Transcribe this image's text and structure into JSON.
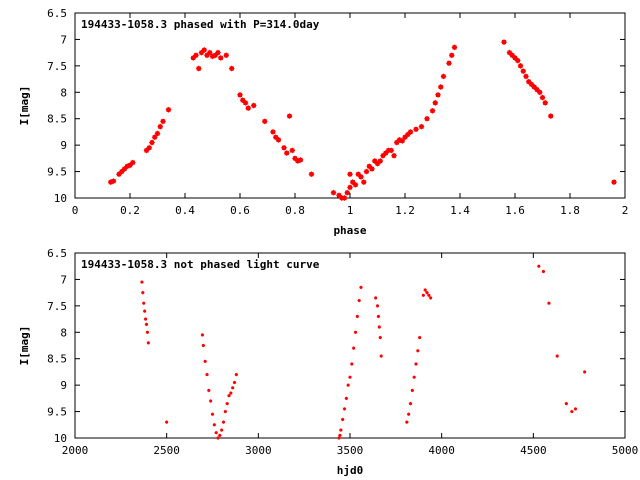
{
  "chart_data": [
    {
      "type": "scatter",
      "title": "194433-1058.3 phased with P=314.0day",
      "xlabel": "phase",
      "ylabel": "I[mag]",
      "xlim": [
        0,
        2
      ],
      "ylim": [
        10,
        6.5
      ],
      "y_inverted": true,
      "grid": false,
      "marker_color": "#ff0000",
      "x_ticks": [
        0,
        0.2,
        0.4,
        0.6,
        0.8,
        1,
        1.2,
        1.4,
        1.6,
        1.8,
        2
      ],
      "x_tick_labels": [
        "0",
        "0.2",
        "0.4",
        "0.6",
        "0.8",
        "1",
        "1.2",
        "1.4",
        "1.6",
        "1.8",
        "2"
      ],
      "y_ticks": [
        6.5,
        7,
        7.5,
        8,
        8.5,
        9,
        9.5,
        10
      ],
      "y_tick_labels": [
        "6.5",
        "7",
        "7.5",
        "8",
        "8.5",
        "9",
        "9.5",
        "10"
      ],
      "x": [
        0.13,
        0.14,
        0.16,
        0.17,
        0.18,
        0.19,
        0.2,
        0.21,
        0.26,
        0.27,
        0.28,
        0.29,
        0.3,
        0.31,
        0.32,
        0.34,
        0.43,
        0.44,
        0.45,
        0.46,
        0.47,
        0.48,
        0.49,
        0.5,
        0.51,
        0.52,
        0.53,
        0.55,
        0.57,
        0.6,
        0.61,
        0.62,
        0.63,
        0.65,
        0.69,
        0.72,
        0.73,
        0.74,
        0.76,
        0.77,
        0.78,
        0.79,
        0.8,
        0.81,
        0.82,
        0.86,
        0.94,
        0.96,
        0.97,
        0.98,
        0.99,
        1.0,
        1.0,
        1.01,
        1.02,
        1.03,
        1.04,
        1.05,
        1.06,
        1.07,
        1.08,
        1.09,
        1.1,
        1.11,
        1.12,
        1.13,
        1.14,
        1.15,
        1.16,
        1.17,
        1.18,
        1.19,
        1.2,
        1.21,
        1.22,
        1.24,
        1.26,
        1.28,
        1.3,
        1.31,
        1.32,
        1.33,
        1.34,
        1.36,
        1.37,
        1.38,
        1.56,
        1.58,
        1.59,
        1.6,
        1.61,
        1.62,
        1.63,
        1.64,
        1.65,
        1.66,
        1.67,
        1.68,
        1.69,
        1.7,
        1.71,
        1.73,
        1.96
      ],
      "y": [
        9.7,
        9.68,
        9.55,
        9.5,
        9.45,
        9.4,
        9.38,
        9.33,
        9.1,
        9.05,
        8.95,
        8.85,
        8.78,
        8.65,
        8.55,
        8.33,
        7.35,
        7.3,
        7.55,
        7.25,
        7.2,
        7.3,
        7.25,
        7.32,
        7.3,
        7.25,
        7.35,
        7.3,
        7.55,
        8.05,
        8.15,
        8.2,
        8.3,
        8.25,
        8.55,
        8.75,
        8.85,
        8.9,
        9.05,
        9.15,
        8.45,
        9.1,
        9.25,
        9.3,
        9.28,
        9.55,
        9.9,
        9.95,
        10.0,
        10.0,
        9.9,
        9.55,
        9.8,
        9.7,
        9.75,
        9.55,
        9.6,
        9.7,
        9.5,
        9.4,
        9.45,
        9.3,
        9.35,
        9.3,
        9.2,
        9.15,
        9.1,
        9.1,
        9.2,
        8.95,
        8.9,
        8.92,
        8.85,
        8.8,
        8.75,
        8.7,
        8.65,
        8.5,
        8.35,
        8.2,
        8.05,
        7.9,
        7.7,
        7.45,
        7.3,
        7.15,
        7.05,
        7.25,
        7.3,
        7.35,
        7.4,
        7.5,
        7.6,
        7.7,
        7.8,
        7.85,
        7.9,
        7.95,
        8.0,
        8.1,
        8.2,
        8.45,
        9.7
      ]
    },
    {
      "type": "scatter",
      "title": "194433-1058.3 not phased light curve",
      "xlabel": "hjd0",
      "ylabel": "I[mag]",
      "xlim": [
        2000,
        5000
      ],
      "ylim": [
        10,
        6.5
      ],
      "y_inverted": true,
      "grid": false,
      "marker_color": "#ff0000",
      "x_ticks": [
        2000,
        2500,
        3000,
        3500,
        4000,
        4500,
        5000
      ],
      "x_tick_labels": [
        "2000",
        "2500",
        "3000",
        "3500",
        "4000",
        "4500",
        "5000"
      ],
      "y_ticks": [
        6.5,
        7,
        7.5,
        8,
        8.5,
        9,
        9.5,
        10
      ],
      "y_tick_labels": [
        "6.5",
        "7",
        "7.5",
        "8",
        "8.5",
        "9",
        "9.5",
        "10"
      ],
      "x": [
        2365,
        2370,
        2375,
        2380,
        2385,
        2390,
        2395,
        2400,
        2500,
        2695,
        2700,
        2710,
        2720,
        2730,
        2740,
        2750,
        2760,
        2770,
        2780,
        2790,
        2800,
        2810,
        2820,
        2830,
        2840,
        2850,
        2860,
        2870,
        2880,
        3440,
        3445,
        3450,
        3460,
        3470,
        3480,
        3490,
        3500,
        3510,
        3520,
        3530,
        3540,
        3550,
        3560,
        3640,
        3650,
        3655,
        3660,
        3665,
        3670,
        3810,
        3820,
        3830,
        3840,
        3850,
        3860,
        3870,
        3880,
        3900,
        3910,
        3920,
        3930,
        3940,
        4530,
        4555,
        4585,
        4630,
        4680,
        4710,
        4730,
        4780
      ],
      "y": [
        7.05,
        7.25,
        7.45,
        7.6,
        7.75,
        7.85,
        8.0,
        8.2,
        9.7,
        8.05,
        8.25,
        8.55,
        8.8,
        9.1,
        9.3,
        9.55,
        9.75,
        9.9,
        10.0,
        9.95,
        9.85,
        9.7,
        9.5,
        9.35,
        9.2,
        9.15,
        9.05,
        8.95,
        8.8,
        10.0,
        9.95,
        9.85,
        9.65,
        9.45,
        9.25,
        9.0,
        8.85,
        8.6,
        8.3,
        8.0,
        7.7,
        7.4,
        7.15,
        7.35,
        7.5,
        7.7,
        7.9,
        8.1,
        8.45,
        9.7,
        9.55,
        9.35,
        9.1,
        8.85,
        8.6,
        8.35,
        8.1,
        7.3,
        7.2,
        7.25,
        7.3,
        7.35,
        6.75,
        6.85,
        7.45,
        8.45,
        9.35,
        9.5,
        9.45,
        8.75
      ]
    }
  ]
}
